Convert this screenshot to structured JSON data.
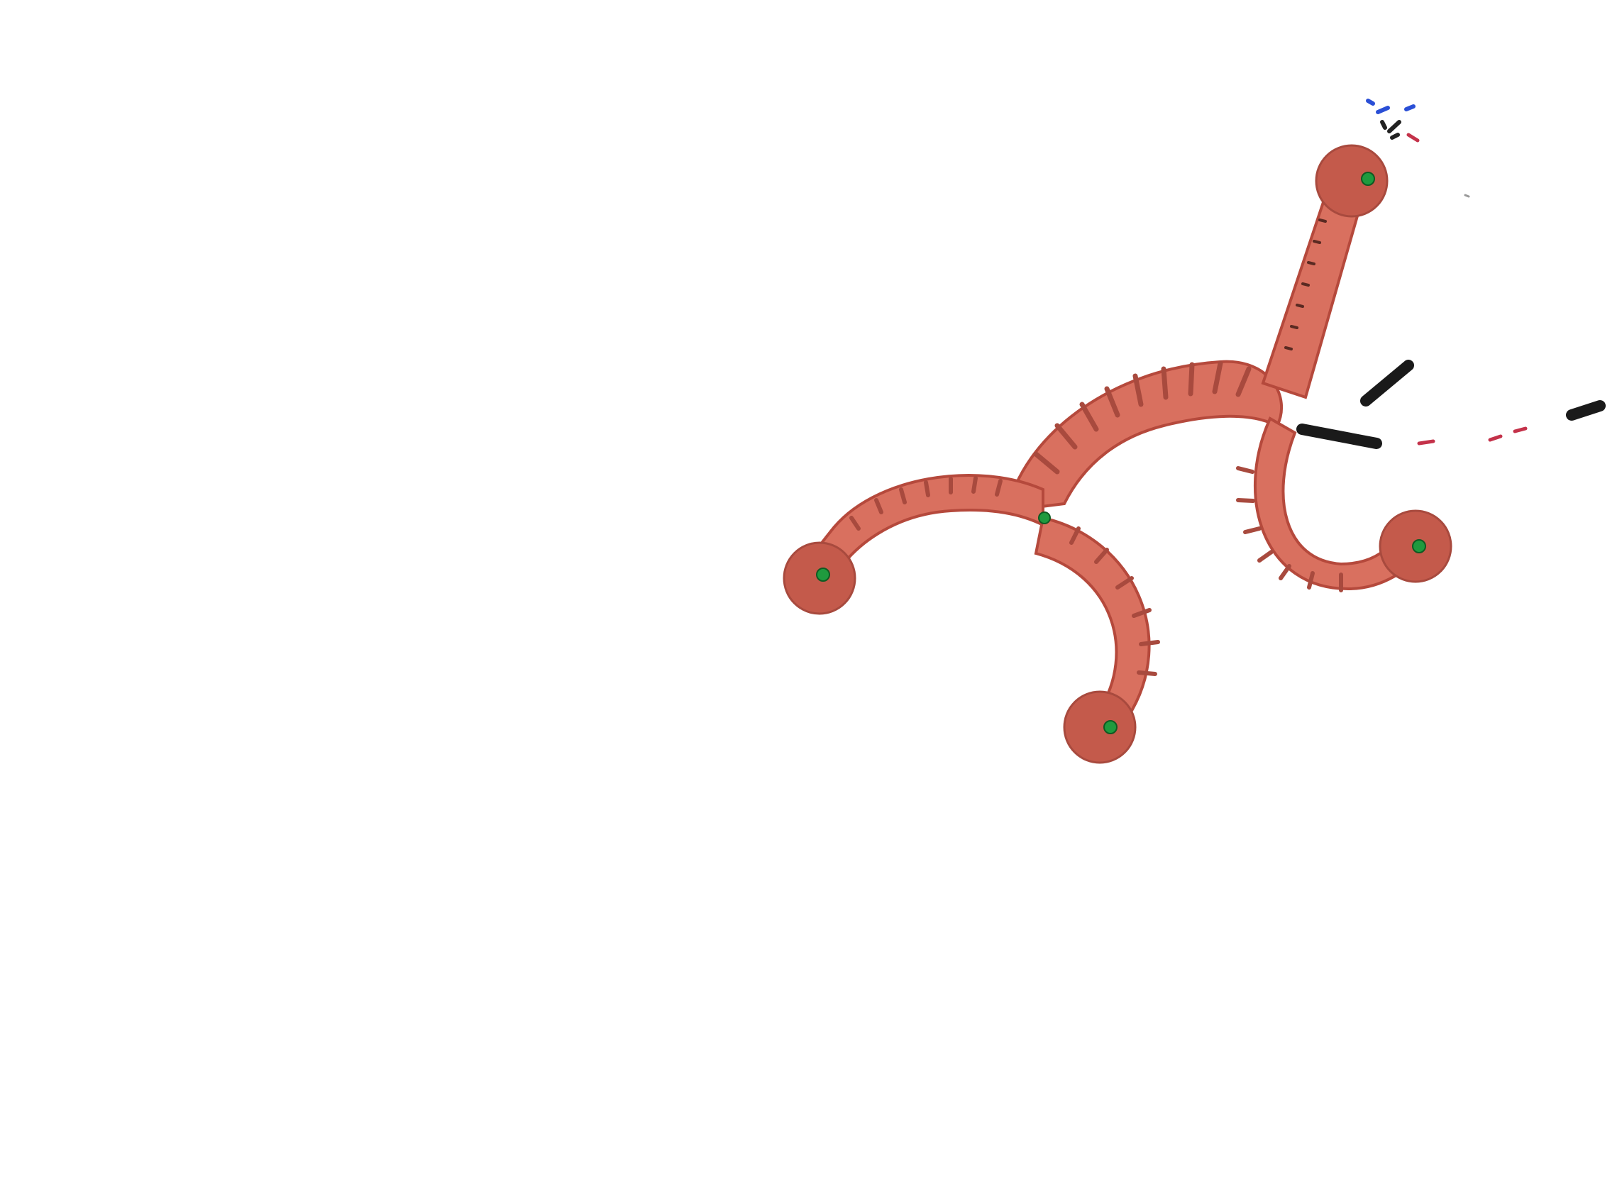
{
  "photo": {
    "background_color": "#ffffff",
    "robot_color": "#d9705f",
    "robot_shadow_color": "#b5493c",
    "foot_pad_color": "#c45a4b",
    "marker_color": "#1f9a3e",
    "tether_color": "#1a1a1a",
    "speck_colors": [
      "#2a4fd6",
      "#c4324a",
      "#222222"
    ],
    "subject": "soft-robot-four-legged"
  }
}
